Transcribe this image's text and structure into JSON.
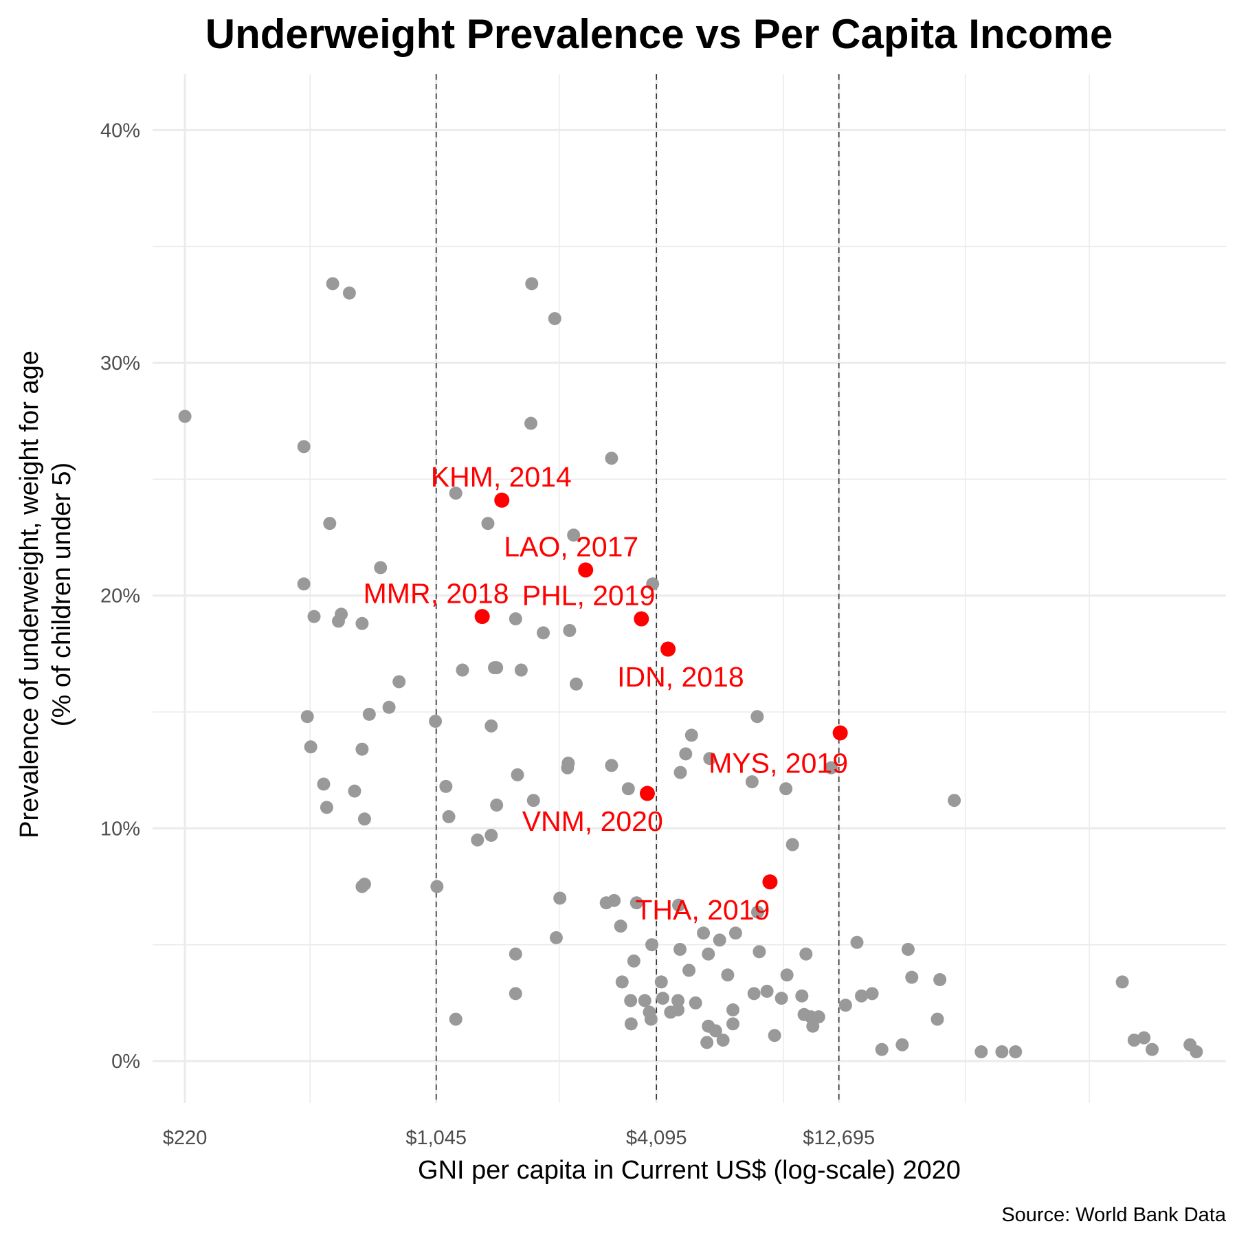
{
  "chart_data": {
    "type": "scatter",
    "title": "Underweight Prevalence vs Per Capita Income",
    "xlabel": "GNI per capita in Current US$ (log-scale) 2020",
    "ylabel": [
      "Prevalence of underweight, weight for age",
      "(% of children under 5)"
    ],
    "caption": "Source: World Bank Data",
    "x_scale": "log",
    "xlim": [
      180,
      140000
    ],
    "ylim": [
      -1.8,
      42.4
    ],
    "x_ticks": [
      {
        "value": 220,
        "label": "$220"
      },
      {
        "value": 1045,
        "label": "$1,045"
      },
      {
        "value": 4095,
        "label": "$4,095"
      },
      {
        "value": 12695,
        "label": "$12,695"
      }
    ],
    "x_minor_grid": [
      478,
      2240,
      9000,
      27800,
      60000
    ],
    "y_ticks": [
      {
        "value": 0,
        "label": "0%"
      },
      {
        "value": 10,
        "label": "10%"
      },
      {
        "value": 20,
        "label": "20%"
      },
      {
        "value": 30,
        "label": "30%"
      },
      {
        "value": 40,
        "label": "40%"
      }
    ],
    "y_minor_grid": [
      5,
      15,
      25,
      35
    ],
    "vlines": [
      1045,
      4095,
      12695
    ],
    "grid": true,
    "colors": {
      "background": "#ffffff",
      "grid": "#ebebeb",
      "points": "#999999",
      "highlight": "#ff0000",
      "vline": "#333333"
    },
    "series": [
      {
        "role": "other-countries",
        "color": "#999999",
        "points": [
          [
            220,
            27.7
          ],
          [
            460,
            26.4
          ],
          [
            460,
            20.5
          ],
          [
            470,
            14.8
          ],
          [
            480,
            13.5
          ],
          [
            490,
            19.1
          ],
          [
            520,
            11.9
          ],
          [
            530,
            10.9
          ],
          [
            540,
            23.1
          ],
          [
            550,
            33.4
          ],
          [
            570,
            18.9
          ],
          [
            580,
            19.2
          ],
          [
            610,
            33.0
          ],
          [
            630,
            11.6
          ],
          [
            660,
            18.8
          ],
          [
            660,
            13.4
          ],
          [
            670,
            10.4
          ],
          [
            660,
            7.5
          ],
          [
            670,
            7.6
          ],
          [
            690,
            14.9
          ],
          [
            740,
            21.2
          ],
          [
            780,
            15.2
          ],
          [
            830,
            16.3
          ],
          [
            1040,
            14.6
          ],
          [
            1050,
            7.5
          ],
          [
            1110,
            11.8
          ],
          [
            1130,
            10.5
          ],
          [
            1180,
            1.8
          ],
          [
            1180,
            24.4
          ],
          [
            1230,
            16.8
          ],
          [
            1350,
            9.5
          ],
          [
            1440,
            23.1
          ],
          [
            1470,
            14.4
          ],
          [
            1470,
            9.7
          ],
          [
            1500,
            16.9
          ],
          [
            1520,
            16.9
          ],
          [
            1520,
            11.0
          ],
          [
            1710,
            4.6
          ],
          [
            1710,
            2.9
          ],
          [
            1710,
            19.0
          ],
          [
            1730,
            12.3
          ],
          [
            1770,
            16.8
          ],
          [
            1880,
            27.4
          ],
          [
            1890,
            33.4
          ],
          [
            1910,
            11.2
          ],
          [
            2030,
            18.4
          ],
          [
            2180,
            31.9
          ],
          [
            2200,
            5.3
          ],
          [
            2250,
            7.0
          ],
          [
            2360,
            12.6
          ],
          [
            2370,
            12.8
          ],
          [
            2390,
            18.5
          ],
          [
            2450,
            22.6
          ],
          [
            2490,
            16.2
          ],
          [
            3100,
            12.7
          ],
          [
            3100,
            25.9
          ],
          [
            3150,
            6.9
          ],
          [
            3000,
            6.8
          ],
          [
            3280,
            5.8
          ],
          [
            3310,
            3.4
          ],
          [
            3440,
            11.7
          ],
          [
            3490,
            2.6
          ],
          [
            3500,
            1.6
          ],
          [
            3560,
            4.3
          ],
          [
            3620,
            6.8
          ],
          [
            3810,
            2.6
          ],
          [
            3920,
            2.1
          ],
          [
            3960,
            1.8
          ],
          [
            3980,
            5.0
          ],
          [
            4000,
            20.5
          ],
          [
            4220,
            3.4
          ],
          [
            4260,
            2.7
          ],
          [
            4470,
            2.1
          ],
          [
            4680,
            2.6
          ],
          [
            4680,
            2.2
          ],
          [
            4750,
            12.4
          ],
          [
            4700,
            6.7
          ],
          [
            4740,
            4.8
          ],
          [
            4910,
            13.2
          ],
          [
            5010,
            3.9
          ],
          [
            5090,
            14.0
          ],
          [
            5220,
            2.5
          ],
          [
            5480,
            5.5
          ],
          [
            5600,
            0.8
          ],
          [
            5650,
            4.6
          ],
          [
            5650,
            1.5
          ],
          [
            5700,
            13.0
          ],
          [
            5910,
            1.3
          ],
          [
            6060,
            5.2
          ],
          [
            6190,
            0.9
          ],
          [
            6370,
            3.7
          ],
          [
            6580,
            2.2
          ],
          [
            6580,
            1.6
          ],
          [
            6690,
            5.5
          ],
          [
            7410,
            12.0
          ],
          [
            7500,
            2.9
          ],
          [
            7650,
            14.8
          ],
          [
            7670,
            6.4
          ],
          [
            7750,
            4.7
          ],
          [
            8130,
            3.0
          ],
          [
            8520,
            1.1
          ],
          [
            8890,
            2.7
          ],
          [
            9140,
            11.7
          ],
          [
            9200,
            3.7
          ],
          [
            9520,
            9.3
          ],
          [
            10090,
            2.8
          ],
          [
            10350,
            4.6
          ],
          [
            10230,
            2.0
          ],
          [
            10670,
            1.9
          ],
          [
            10800,
            1.5
          ],
          [
            11200,
            1.9
          ],
          [
            12100,
            12.6
          ],
          [
            13230,
            2.4
          ],
          [
            14200,
            5.1
          ],
          [
            14600,
            2.8
          ],
          [
            15600,
            2.9
          ],
          [
            16570,
            0.5
          ],
          [
            18800,
            0.7
          ],
          [
            19500,
            4.8
          ],
          [
            19950,
            3.6
          ],
          [
            23380,
            1.8
          ],
          [
            23740,
            3.5
          ],
          [
            25960,
            11.2
          ],
          [
            30680,
            0.4
          ],
          [
            34880,
            0.4
          ],
          [
            37960,
            0.4
          ],
          [
            73590,
            3.4
          ],
          [
            79200,
            0.9
          ],
          [
            84200,
            1.0
          ],
          [
            88550,
            0.5
          ],
          [
            112000,
            0.7
          ],
          [
            116500,
            0.4
          ]
        ]
      },
      {
        "role": "highlighted-countries",
        "color": "#ff0000",
        "points": [
          {
            "x": 1570,
            "y": 24.1,
            "label": "KHM, 2014",
            "label_x": 1010,
            "label_y": 25.1
          },
          {
            "x": 2640,
            "y": 21.1,
            "label": "LAO, 2017",
            "label_x": 1590,
            "label_y": 22.1
          },
          {
            "x": 1390,
            "y": 19.1,
            "label": "MMR, 2018",
            "label_x": 665,
            "label_y": 20.1
          },
          {
            "x": 3730,
            "y": 19.0,
            "label": "PHL, 2019",
            "label_x": 1780,
            "label_y": 20.0
          },
          {
            "x": 4400,
            "y": 17.7,
            "label": "IDN, 2018",
            "label_x": 3210,
            "label_y": 16.5
          },
          {
            "x": 12800,
            "y": 14.1,
            "label": "MYS, 2019",
            "label_x": 5660,
            "label_y": 12.8
          },
          {
            "x": 3870,
            "y": 11.5,
            "label": "VNM, 2020",
            "label_x": 1780,
            "label_y": 10.3
          },
          {
            "x": 8280,
            "y": 7.7,
            "label": "THA, 2019",
            "label_x": 3590,
            "label_y": 6.5
          }
        ]
      }
    ]
  }
}
